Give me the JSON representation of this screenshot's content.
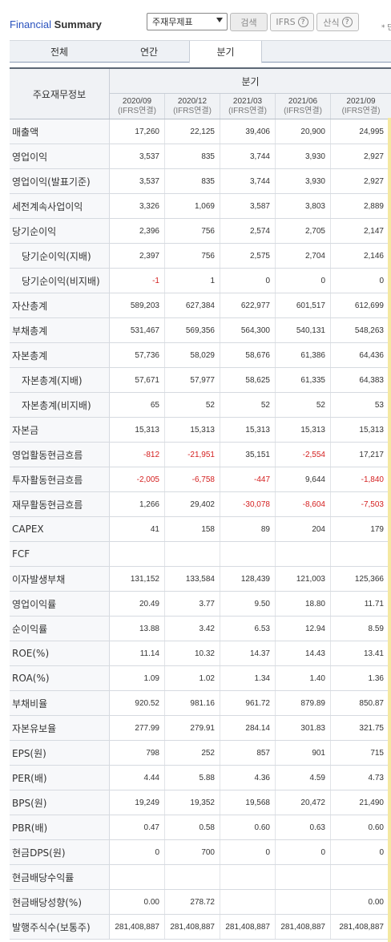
{
  "header": {
    "title_part1": "Financial",
    "title_part2": "Summary",
    "select_value": "주재무제표",
    "search_label": "검색",
    "ifrs_label": "IFRS",
    "calc_label": "산식",
    "help_glyph": "?",
    "note": "* 단"
  },
  "tabs": [
    {
      "label": "전체"
    },
    {
      "label": "연간"
    },
    {
      "label": "분기"
    }
  ],
  "table": {
    "name_header": "주요재무정보",
    "group_header": "분기",
    "columns": [
      {
        "period": "2020/09",
        "basis": "(IFRS연결)"
      },
      {
        "period": "2020/12",
        "basis": "(IFRS연결)"
      },
      {
        "period": "2021/03",
        "basis": "(IFRS연결)"
      },
      {
        "period": "2021/06",
        "basis": "(IFRS연결)"
      },
      {
        "period": "2021/09",
        "basis": "(IFRS연결)"
      }
    ],
    "rows": [
      {
        "name": "매출액",
        "sub": false,
        "values": [
          "17,260",
          "22,125",
          "39,406",
          "20,900",
          "24,995"
        ]
      },
      {
        "name": "영업이익",
        "sub": false,
        "values": [
          "3,537",
          "835",
          "3,744",
          "3,930",
          "2,927"
        ]
      },
      {
        "name": "영업이익(발표기준)",
        "sub": false,
        "values": [
          "3,537",
          "835",
          "3,744",
          "3,930",
          "2,927"
        ]
      },
      {
        "name": "세전계속사업이익",
        "sub": false,
        "values": [
          "3,326",
          "1,069",
          "3,587",
          "3,803",
          "2,889"
        ]
      },
      {
        "name": "당기순이익",
        "sub": false,
        "values": [
          "2,396",
          "756",
          "2,574",
          "2,705",
          "2,147"
        ]
      },
      {
        "name": "당기순이익(지배)",
        "sub": true,
        "values": [
          "2,397",
          "756",
          "2,575",
          "2,704",
          "2,146"
        ]
      },
      {
        "name": "당기순이익(비지배)",
        "sub": true,
        "values": [
          "-1",
          "1",
          "0",
          "0",
          "0"
        ]
      },
      {
        "name": "자산총계",
        "sub": false,
        "values": [
          "589,203",
          "627,384",
          "622,977",
          "601,517",
          "612,699"
        ]
      },
      {
        "name": "부채총계",
        "sub": false,
        "values": [
          "531,467",
          "569,356",
          "564,300",
          "540,131",
          "548,263"
        ]
      },
      {
        "name": "자본총계",
        "sub": false,
        "values": [
          "57,736",
          "58,029",
          "58,676",
          "61,386",
          "64,436"
        ]
      },
      {
        "name": "자본총계(지배)",
        "sub": true,
        "values": [
          "57,671",
          "57,977",
          "58,625",
          "61,335",
          "64,383"
        ]
      },
      {
        "name": "자본총계(비지배)",
        "sub": true,
        "values": [
          "65",
          "52",
          "52",
          "52",
          "53"
        ]
      },
      {
        "name": "자본금",
        "sub": false,
        "values": [
          "15,313",
          "15,313",
          "15,313",
          "15,313",
          "15,313"
        ]
      },
      {
        "name": "영업활동현금흐름",
        "sub": false,
        "values": [
          "-812",
          "-21,951",
          "35,151",
          "-2,554",
          "17,217"
        ]
      },
      {
        "name": "투자활동현금흐름",
        "sub": false,
        "values": [
          "-2,005",
          "-6,758",
          "-447",
          "9,644",
          "-1,840"
        ]
      },
      {
        "name": "재무활동현금흐름",
        "sub": false,
        "values": [
          "1,266",
          "29,402",
          "-30,078",
          "-8,604",
          "-7,503"
        ]
      },
      {
        "name": "CAPEX",
        "sub": false,
        "values": [
          "41",
          "158",
          "89",
          "204",
          "179"
        ]
      },
      {
        "name": "FCF",
        "sub": false,
        "values": [
          "",
          "",
          "",
          "",
          ""
        ]
      },
      {
        "name": "이자발생부채",
        "sub": false,
        "values": [
          "131,152",
          "133,584",
          "128,439",
          "121,003",
          "125,366"
        ]
      },
      {
        "name": "영업이익률",
        "sub": false,
        "values": [
          "20.49",
          "3.77",
          "9.50",
          "18.80",
          "11.71"
        ]
      },
      {
        "name": "순이익률",
        "sub": false,
        "values": [
          "13.88",
          "3.42",
          "6.53",
          "12.94",
          "8.59"
        ]
      },
      {
        "name": "ROE(%)",
        "sub": false,
        "values": [
          "11.14",
          "10.32",
          "14.37",
          "14.43",
          "13.41"
        ]
      },
      {
        "name": "ROA(%)",
        "sub": false,
        "values": [
          "1.09",
          "1.02",
          "1.34",
          "1.40",
          "1.36"
        ]
      },
      {
        "name": "부채비율",
        "sub": false,
        "values": [
          "920.52",
          "981.16",
          "961.72",
          "879.89",
          "850.87"
        ]
      },
      {
        "name": "자본유보율",
        "sub": false,
        "values": [
          "277.99",
          "279.91",
          "284.14",
          "301.83",
          "321.75"
        ]
      },
      {
        "name": "EPS(원)",
        "sub": false,
        "values": [
          "798",
          "252",
          "857",
          "901",
          "715"
        ]
      },
      {
        "name": "PER(배)",
        "sub": false,
        "values": [
          "4.44",
          "5.88",
          "4.36",
          "4.59",
          "4.73"
        ]
      },
      {
        "name": "BPS(원)",
        "sub": false,
        "values": [
          "19,249",
          "19,352",
          "19,568",
          "20,472",
          "21,490"
        ]
      },
      {
        "name": "PBR(배)",
        "sub": false,
        "values": [
          "0.47",
          "0.58",
          "0.60",
          "0.63",
          "0.60"
        ]
      },
      {
        "name": "현금DPS(원)",
        "sub": false,
        "values": [
          "0",
          "700",
          "0",
          "0",
          "0"
        ]
      },
      {
        "name": "현금배당수익률",
        "sub": false,
        "values": [
          "",
          "",
          "",
          "",
          ""
        ]
      },
      {
        "name": "현금배당성향(%)",
        "sub": false,
        "values": [
          "0.00",
          "278.72",
          "",
          "",
          "0.00"
        ]
      },
      {
        "name": "발행주식수(보통주)",
        "sub": false,
        "values": [
          "281,408,887",
          "281,408,887",
          "281,408,887",
          "281,408,887",
          "281,408,887"
        ]
      }
    ]
  },
  "colors": {
    "negative": "#d42020",
    "title_blue": "#2a52be"
  }
}
